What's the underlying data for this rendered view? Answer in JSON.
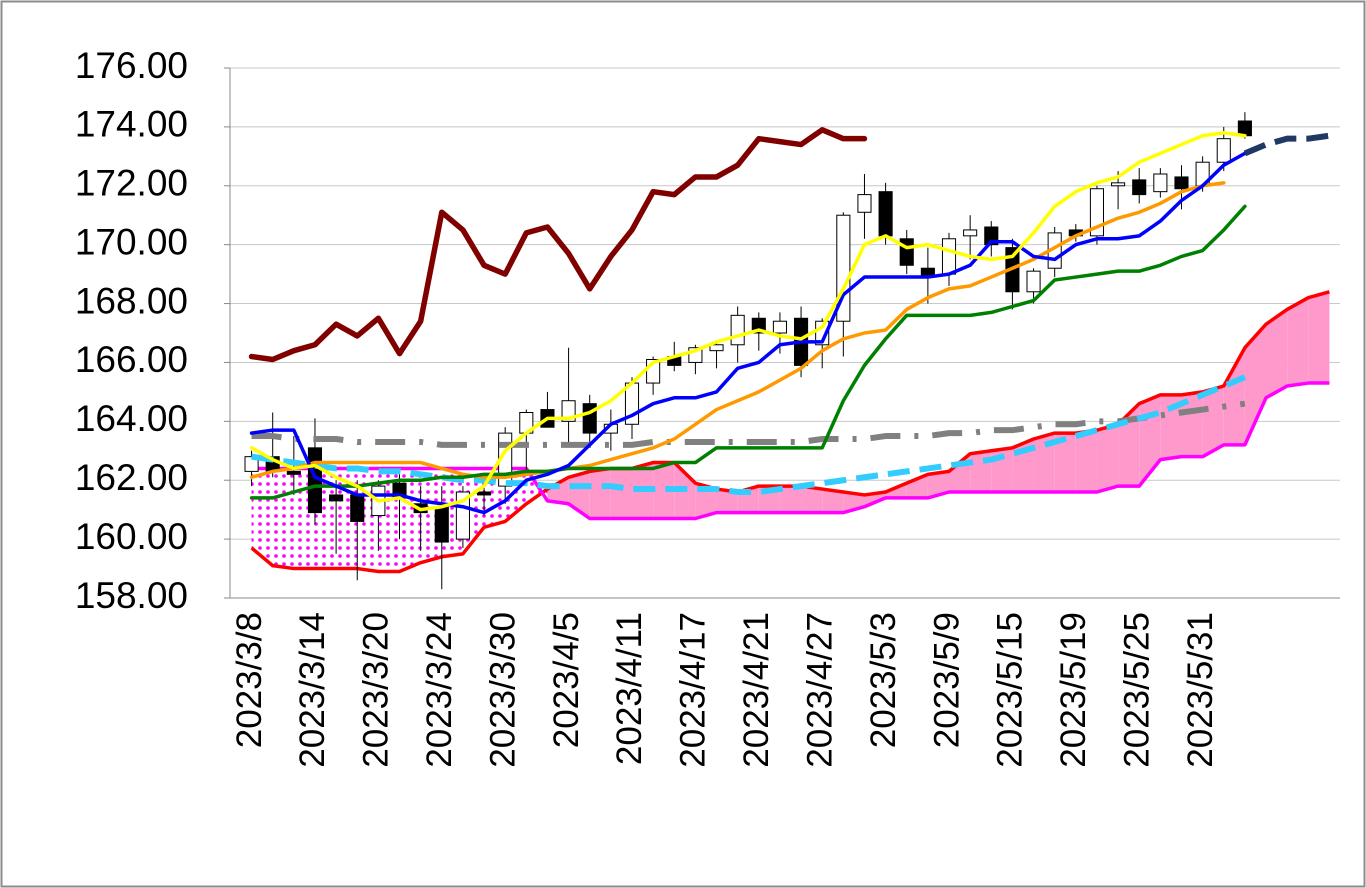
{
  "chart_data": {
    "type": "candlestick",
    "categories": [
      "2023/3/8",
      null,
      null,
      "2023/3/14",
      null,
      null,
      "2023/3/20",
      null,
      null,
      "2023/3/24",
      null,
      null,
      "2023/3/30",
      null,
      null,
      "2023/4/5",
      null,
      null,
      "2023/4/11",
      null,
      null,
      "2023/4/17",
      null,
      null,
      "2023/4/21",
      null,
      null,
      "2023/4/27",
      null,
      null,
      "2023/5/3",
      null,
      null,
      "2023/5/9",
      null,
      null,
      "2023/5/15",
      null,
      null,
      "2023/5/19",
      null,
      null,
      "2023/5/25",
      null,
      null,
      "2023/5/31",
      null,
      null,
      null,
      null,
      null,
      null
    ],
    "ylim": [
      158,
      176
    ],
    "yticks": [
      {
        "value": 158,
        "label": "158.00"
      },
      {
        "value": 160,
        "label": "160.00"
      },
      {
        "value": 162,
        "label": "162.00"
      },
      {
        "value": 164,
        "label": "164.00"
      },
      {
        "value": 166,
        "label": "166.00"
      },
      {
        "value": 168,
        "label": "168.00"
      },
      {
        "value": 170,
        "label": "170.00"
      },
      {
        "value": 172,
        "label": "172.00"
      },
      {
        "value": 174,
        "label": "174.00"
      },
      {
        "value": 176,
        "label": "176.00"
      }
    ],
    "grid": true,
    "cloud": {
      "a": [
        159.7,
        159.1,
        159.0,
        159.0,
        159.0,
        159.0,
        158.9,
        158.9,
        159.2,
        159.4,
        159.5,
        160.4,
        160.6,
        161.2,
        161.7,
        162.1,
        162.3,
        162.4,
        162.4,
        162.6,
        162.6,
        161.9,
        161.7,
        161.6,
        161.8,
        161.8,
        161.8,
        161.7,
        161.6,
        161.5,
        161.6,
        161.9,
        162.2,
        162.3,
        162.9,
        163.0,
        163.1,
        163.4,
        163.6,
        163.6,
        163.7,
        163.9,
        164.6,
        164.9,
        164.9,
        165.0,
        165.2,
        166.5,
        167.3,
        167.8,
        168.2,
        168.4
      ],
      "b": [
        162.4,
        162.4,
        162.4,
        162.4,
        162.4,
        162.4,
        162.4,
        162.4,
        162.4,
        162.4,
        162.4,
        162.4,
        162.4,
        162.4,
        161.3,
        161.2,
        160.7,
        160.7,
        160.7,
        160.7,
        160.7,
        160.7,
        160.9,
        160.9,
        160.9,
        160.9,
        160.9,
        160.9,
        160.9,
        161.1,
        161.4,
        161.4,
        161.4,
        161.6,
        161.6,
        161.6,
        161.6,
        161.6,
        161.6,
        161.6,
        161.6,
        161.8,
        161.8,
        162.7,
        162.8,
        162.8,
        163.2,
        163.2,
        164.8,
        165.2,
        165.3,
        165.3
      ],
      "a_color": "#ff0000",
      "b_color": "#ff00ff",
      "above_fill": "#ff99cc",
      "below_fill": "#ff00ff"
    },
    "candles": {
      "open": [
        162.3,
        162.8,
        162.3,
        163.1,
        161.5,
        161.5,
        160.8,
        161.9,
        161.2,
        161.1,
        160.0,
        161.6,
        161.8,
        163.6,
        164.4,
        164.0,
        164.6,
        163.6,
        163.9,
        165.3,
        166.2,
        166.0,
        166.4,
        166.6,
        167.5,
        167.0,
        167.5,
        166.6,
        167.4,
        171.1,
        171.8,
        170.2,
        169.2,
        169.0,
        170.3,
        170.6,
        169.9,
        168.4,
        169.2,
        170.5,
        170.3,
        172.0,
        172.2,
        171.8,
        172.3,
        172.0,
        172.8,
        174.2
      ],
      "high": [
        163.0,
        164.3,
        163.5,
        164.1,
        162.0,
        162.0,
        162.0,
        162.2,
        161.8,
        161.8,
        161.8,
        162.0,
        163.8,
        164.4,
        165.0,
        166.5,
        164.9,
        164.4,
        165.5,
        166.2,
        166.7,
        166.6,
        166.7,
        167.9,
        167.7,
        167.7,
        167.9,
        167.5,
        171.1,
        172.4,
        172.1,
        170.5,
        169.9,
        170.4,
        171.0,
        170.8,
        170.2,
        169.2,
        170.6,
        170.7,
        172.0,
        172.5,
        172.6,
        172.6,
        172.7,
        173.0,
        174.0,
        174.5
      ],
      "low": [
        161.8,
        162.1,
        161.5,
        160.5,
        159.5,
        158.6,
        159.6,
        160.0,
        159.6,
        158.3,
        159.7,
        160.8,
        161.2,
        162.2,
        163.8,
        163.2,
        163.2,
        163.0,
        163.4,
        164.9,
        165.7,
        165.6,
        165.8,
        166.0,
        166.4,
        166.3,
        165.5,
        165.8,
        166.2,
        170.2,
        170.0,
        169.0,
        168.0,
        168.6,
        169.5,
        169.6,
        167.8,
        168.0,
        168.9,
        170.1,
        170.0,
        171.2,
        171.4,
        171.6,
        171.2,
        171.8,
        172.5,
        173.6
      ],
      "close": [
        162.8,
        162.3,
        162.2,
        160.9,
        161.3,
        160.6,
        161.8,
        161.4,
        160.9,
        159.9,
        161.6,
        161.5,
        163.6,
        164.3,
        163.8,
        164.7,
        163.6,
        163.9,
        165.3,
        166.1,
        165.9,
        166.5,
        166.6,
        167.6,
        167.0,
        167.4,
        165.9,
        167.4,
        171.0,
        171.7,
        170.3,
        169.3,
        168.9,
        170.2,
        170.5,
        170.0,
        168.4,
        169.1,
        170.4,
        170.3,
        171.9,
        172.1,
        171.7,
        172.4,
        171.9,
        172.8,
        173.6,
        173.7
      ],
      "up_color": "#ffffff",
      "down_color": "#000000",
      "edge_color": "#000000"
    },
    "series": [
      {
        "color": "#808080",
        "width": 6,
        "style": "dash-dot",
        "values": [
          163.5,
          163.5,
          163.4,
          163.4,
          163.4,
          163.3,
          163.3,
          163.3,
          163.3,
          163.2,
          163.2,
          163.2,
          163.2,
          163.2,
          163.2,
          163.2,
          163.2,
          163.2,
          163.2,
          163.3,
          163.3,
          163.3,
          163.3,
          163.3,
          163.3,
          163.3,
          163.3,
          163.4,
          163.4,
          163.4,
          163.5,
          163.5,
          163.5,
          163.6,
          163.6,
          163.7,
          163.7,
          163.8,
          163.9,
          163.9,
          164.0,
          164.0,
          164.1,
          164.2,
          164.3,
          164.4,
          164.5,
          164.6,
          null,
          null,
          null,
          null
        ]
      },
      {
        "color": "#33ccff",
        "width": 6,
        "style": "dashed",
        "values": [
          162.8,
          162.7,
          162.6,
          162.5,
          162.4,
          162.4,
          162.3,
          162.3,
          162.2,
          162.1,
          162.0,
          162.0,
          161.9,
          161.9,
          161.8,
          161.8,
          161.8,
          161.8,
          161.7,
          161.7,
          161.7,
          161.7,
          161.7,
          161.6,
          161.6,
          161.7,
          161.8,
          161.9,
          162.0,
          162.1,
          162.2,
          162.3,
          162.4,
          162.5,
          162.6,
          162.7,
          162.9,
          163.1,
          163.3,
          163.5,
          163.7,
          163.9,
          164.1,
          164.3,
          164.6,
          164.9,
          165.2,
          165.5,
          null,
          null,
          null,
          null
        ]
      },
      {
        "color": "#ff9900",
        "width": 3.5,
        "style": "solid",
        "values": [
          162.1,
          162.3,
          162.4,
          162.6,
          162.6,
          162.6,
          162.6,
          162.6,
          162.6,
          162.4,
          162.2,
          162.1,
          162.1,
          162.2,
          162.3,
          162.4,
          162.5,
          162.7,
          162.9,
          163.1,
          163.4,
          163.9,
          164.4,
          164.7,
          165.0,
          165.4,
          165.8,
          166.4,
          166.8,
          167.0,
          167.1,
          167.8,
          168.2,
          168.5,
          168.6,
          168.9,
          169.2,
          169.5,
          169.9,
          170.3,
          170.6,
          170.9,
          171.1,
          171.4,
          171.8,
          172.0,
          172.1,
          null,
          null,
          null,
          null,
          null
        ]
      },
      {
        "color": "#008000",
        "width": 3.5,
        "style": "solid",
        "values": [
          161.4,
          161.4,
          161.6,
          161.8,
          161.8,
          161.8,
          161.9,
          162.0,
          162.0,
          162.1,
          162.1,
          162.2,
          162.2,
          162.3,
          162.3,
          162.4,
          162.4,
          162.4,
          162.4,
          162.4,
          162.6,
          162.6,
          163.1,
          163.1,
          163.1,
          163.1,
          163.1,
          163.1,
          164.7,
          165.9,
          166.8,
          167.6,
          167.6,
          167.6,
          167.6,
          167.7,
          167.9,
          168.1,
          168.8,
          168.9,
          169.0,
          169.1,
          169.1,
          169.3,
          169.6,
          169.8,
          170.5,
          171.3,
          null,
          null,
          null,
          null
        ]
      },
      {
        "color": "#0000ff",
        "width": 3.5,
        "style": "solid",
        "values": [
          163.6,
          163.7,
          163.7,
          162.1,
          161.8,
          161.5,
          161.5,
          161.5,
          161.3,
          161.2,
          161.1,
          160.9,
          161.3,
          162.0,
          162.2,
          162.5,
          163.2,
          163.9,
          164.2,
          164.6,
          164.8,
          164.8,
          165.0,
          165.8,
          166.0,
          166.6,
          166.7,
          166.7,
          168.3,
          168.9,
          168.9,
          168.9,
          168.9,
          169.0,
          169.3,
          170.1,
          170.1,
          169.6,
          169.5,
          170.0,
          170.2,
          170.2,
          170.3,
          170.8,
          171.5,
          172.0,
          172.7,
          173.1,
          null,
          null,
          null,
          null
        ]
      },
      {
        "color": "#ffff00",
        "width": 3.5,
        "style": "solid",
        "values": [
          163.1,
          162.7,
          162.4,
          162.5,
          162.1,
          161.8,
          161.3,
          161.4,
          161.0,
          161.1,
          161.3,
          161.8,
          163.0,
          163.6,
          164.1,
          164.1,
          164.3,
          164.7,
          165.3,
          166.0,
          166.2,
          166.4,
          166.7,
          166.9,
          167.1,
          166.9,
          166.8,
          167.2,
          168.5,
          170.0,
          170.3,
          169.9,
          170.0,
          169.8,
          169.6,
          169.5,
          169.6,
          170.4,
          171.3,
          171.8,
          172.1,
          172.3,
          172.8,
          173.1,
          173.4,
          173.7,
          173.8,
          173.7,
          null,
          null,
          null,
          null
        ]
      },
      {
        "color": "#1f3864",
        "width": 6,
        "style": "dashed",
        "values": [
          null,
          null,
          null,
          null,
          null,
          null,
          null,
          null,
          null,
          null,
          null,
          null,
          null,
          null,
          null,
          null,
          null,
          null,
          null,
          null,
          null,
          null,
          null,
          null,
          null,
          null,
          null,
          null,
          null,
          null,
          null,
          null,
          null,
          null,
          null,
          null,
          null,
          null,
          null,
          null,
          null,
          null,
          null,
          null,
          null,
          null,
          null,
          173.1,
          173.4,
          173.6,
          173.6,
          173.7
        ]
      },
      {
        "color": "#800000",
        "width": 5.5,
        "style": "solid",
        "values": [
          166.2,
          166.1,
          166.4,
          166.6,
          167.3,
          166.9,
          167.5,
          166.3,
          167.4,
          171.1,
          170.5,
          169.3,
          169.0,
          170.4,
          170.6,
          169.7,
          168.5,
          169.6,
          170.5,
          171.8,
          171.7,
          172.3,
          172.3,
          172.7,
          173.6,
          173.5,
          173.4,
          173.9,
          173.6,
          173.6,
          null,
          null,
          null,
          null,
          null,
          null,
          null,
          null,
          null,
          null,
          null,
          null,
          null,
          null,
          null,
          null,
          null,
          null,
          null,
          null,
          null,
          null
        ]
      }
    ]
  }
}
